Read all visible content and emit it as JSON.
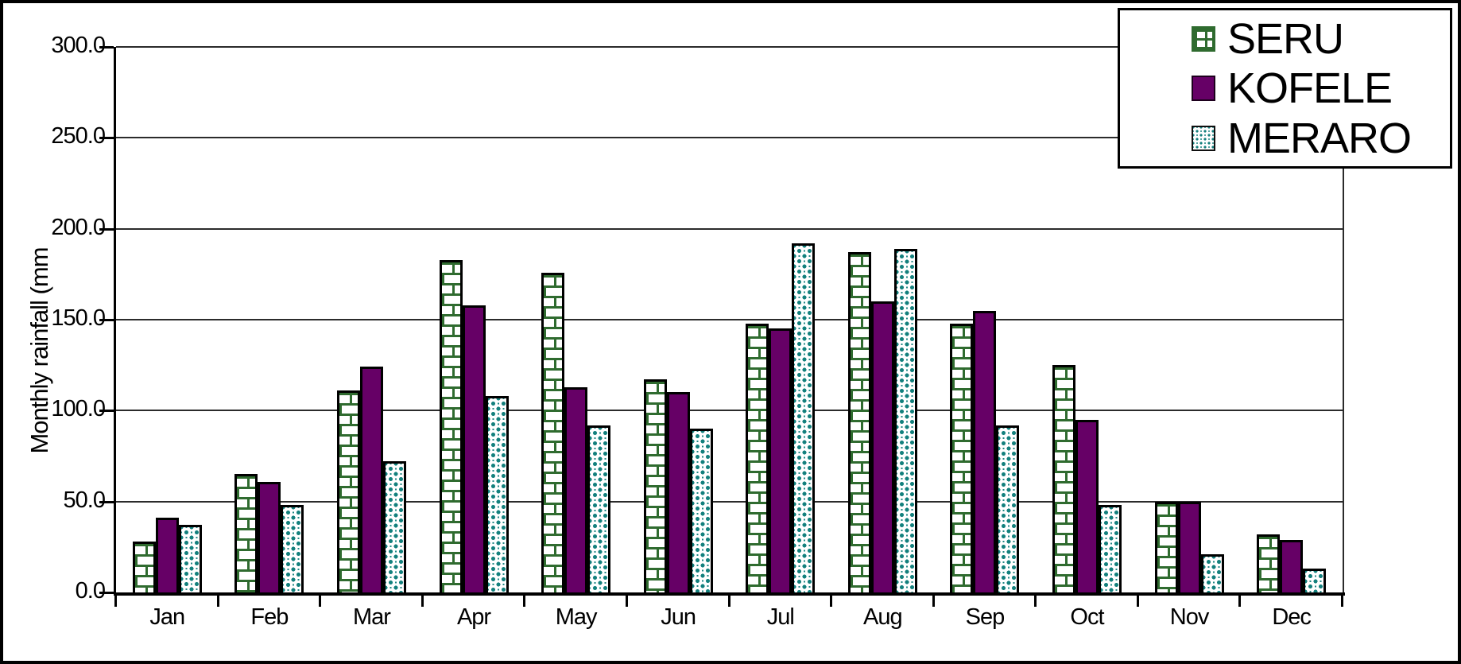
{
  "chart_data": {
    "type": "bar",
    "title": "",
    "xlabel": "",
    "ylabel": "Monthly rainfall (mm",
    "ylim": [
      0,
      300
    ],
    "ytick_step": 50,
    "ytick_labels": [
      "0.0",
      "50.0",
      "100.0",
      "150.0",
      "200.0",
      "250.0",
      "300.0"
    ],
    "grid": true,
    "legend_position": "top-right",
    "categories": [
      "Jan",
      "Feb",
      "Mar",
      "Apr",
      "May",
      "Jun",
      "Jul",
      "Aug",
      "Sep",
      "Oct",
      "Nov",
      "Dec"
    ],
    "series": [
      {
        "name": "SERU",
        "pattern": "green-brick",
        "color": "#2f6b2f",
        "values": [
          28,
          65,
          111,
          183,
          176,
          117,
          148,
          187,
          148,
          125,
          50,
          32
        ]
      },
      {
        "name": "KOFELE",
        "pattern": "solid",
        "color": "#660066",
        "values": [
          41,
          61,
          124,
          158,
          113,
          110,
          145,
          160,
          155,
          95,
          50,
          29
        ]
      },
      {
        "name": "MERARO",
        "pattern": "teal-rings",
        "color": "#13807d",
        "values": [
          37,
          48,
          72,
          108,
          92,
          90,
          192,
          189,
          92,
          48,
          21,
          13
        ]
      }
    ]
  }
}
